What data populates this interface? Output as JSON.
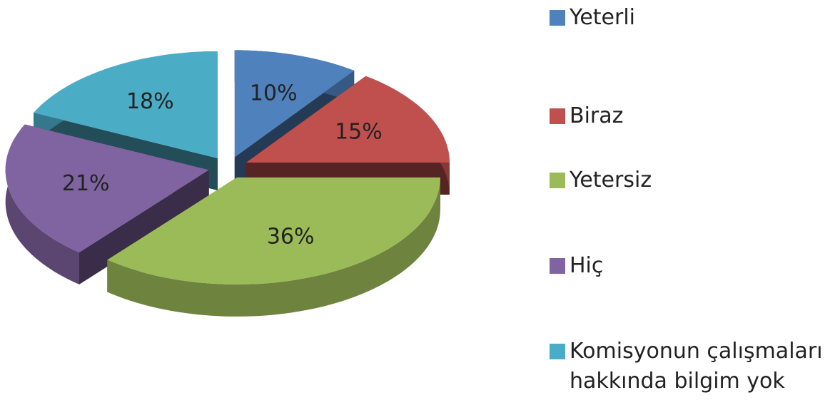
{
  "chart_data": {
    "type": "pie3d",
    "categories": [
      "Yeterli",
      "Biraz",
      "Yetersiz",
      "Hiç",
      "Komisyonun çalışmaları hakkında bilgim yok"
    ],
    "values": [
      10,
      15,
      36,
      21,
      18
    ],
    "value_labels": [
      "10%",
      "15%",
      "36%",
      "21%",
      "18%"
    ],
    "colors": [
      "#4f81bd",
      "#c0504d",
      "#9bbb59",
      "#8064a2",
      "#4bacc6"
    ],
    "legend": "right"
  }
}
